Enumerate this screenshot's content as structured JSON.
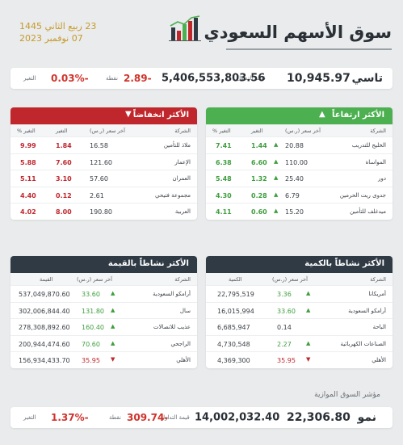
{
  "header": {
    "title": "سوق الأسهم السعودي",
    "date_hijri": "23 ربيع الثاني 1445",
    "date_gregorian": "07 نوفمبر 2023",
    "icon": "chart-bars-icon"
  },
  "tasi": {
    "name": "تاسي",
    "value": "10,945.97",
    "turnover": "5,406,553,803.56",
    "turnover_label": "قيمة التداول",
    "points": "2.89-",
    "points_label": "نقطة",
    "change": "0.03%-",
    "change_label": "التغير"
  },
  "top_gainers": {
    "title": "الأكثر ارتفاعاً",
    "columns": {
      "company": "الشركة",
      "price": "آخر سعر (ر.س)",
      "change": "التغير",
      "pct": "التغير %"
    },
    "rows": [
      {
        "company": "الخليج للتدريب",
        "price": "20.88",
        "change": "1.44",
        "pct": "7.41"
      },
      {
        "company": "المواساة",
        "price": "110.00",
        "change": "6.60",
        "pct": "6.38"
      },
      {
        "company": "دور",
        "price": "25.40",
        "change": "1.32",
        "pct": "5.48"
      },
      {
        "company": "جدوى ريت الحرمين",
        "price": "6.79",
        "change": "0.28",
        "pct": "4.30"
      },
      {
        "company": "ميدغلف للتأمين",
        "price": "15.20",
        "change": "0.60",
        "pct": "4.11"
      }
    ]
  },
  "top_losers": {
    "title": "الأكثر انخفاضاً",
    "columns": {
      "company": "الشركة",
      "price": "آخر سعر (ر.س)",
      "change": "التغير",
      "pct": "التغير %"
    },
    "rows": [
      {
        "company": "ملاذ للتأمين",
        "price": "16.58",
        "change": "1.84",
        "pct": "9.99"
      },
      {
        "company": "الإعمار",
        "price": "121.60",
        "change": "7.60",
        "pct": "5.88"
      },
      {
        "company": "العمران",
        "price": "57.60",
        "change": "3.10",
        "pct": "5.11"
      },
      {
        "company": "مجموعة فتيحي",
        "price": "2.61",
        "change": "0.12",
        "pct": "4.40"
      },
      {
        "company": "العربية",
        "price": "190.80",
        "change": "8.00",
        "pct": "4.02"
      }
    ]
  },
  "most_active_qty": {
    "title": "الأكثر نشاطاً بالكمية",
    "columns": {
      "company": "الشركة",
      "price": "آخر سعر (ر.س)",
      "qty": "الكمية"
    },
    "rows": [
      {
        "company": "أمريكانا",
        "price": "3.36",
        "dir": "up",
        "qty": "22,795,519"
      },
      {
        "company": "أرامكو السعودية",
        "price": "33.60",
        "dir": "up",
        "qty": "16,015,994"
      },
      {
        "company": "الباحة",
        "price": "0.14",
        "dir": "none",
        "qty": "6,685,947"
      },
      {
        "company": "الصناعات الكهربائية",
        "price": "2.27",
        "dir": "up",
        "qty": "4,730,548"
      },
      {
        "company": "الأهلي",
        "price": "35.95",
        "dir": "down",
        "qty": "4,369,300"
      }
    ]
  },
  "most_active_value": {
    "title": "الأكثر نشاطاً بالقيمة",
    "columns": {
      "company": "الشركة",
      "price": "آخر سعر (ر.س)",
      "value": "القيمة"
    },
    "rows": [
      {
        "company": "أرامكو السعودية",
        "price": "33.60",
        "dir": "up",
        "value": "537,049,870.60"
      },
      {
        "company": "سال",
        "price": "131.80",
        "dir": "up",
        "value": "302,006,844.40"
      },
      {
        "company": "عذيب للاتصالات",
        "price": "160.40",
        "dir": "up",
        "value": "278,308,892.60"
      },
      {
        "company": "الراجحي",
        "price": "70.60",
        "dir": "up",
        "value": "200,944,474.60"
      },
      {
        "company": "الأهلي",
        "price": "35.95",
        "dir": "down",
        "value": "156,934,433.70"
      }
    ]
  },
  "nomu": {
    "caption": "مؤشر السوق الموازية",
    "name": "نمو",
    "value": "22,306.80",
    "turnover": "14,002,032.40",
    "turnover_label": "قيمة التداول",
    "points": "309.74-",
    "points_label": "نقطة",
    "change": "1.37%-",
    "change_label": "التغير"
  },
  "colors": {
    "gainers_accent": "#4caf50",
    "losers_accent": "#c0272d",
    "active_header": "#2f3a45",
    "date_gold": "#c79a2a"
  }
}
